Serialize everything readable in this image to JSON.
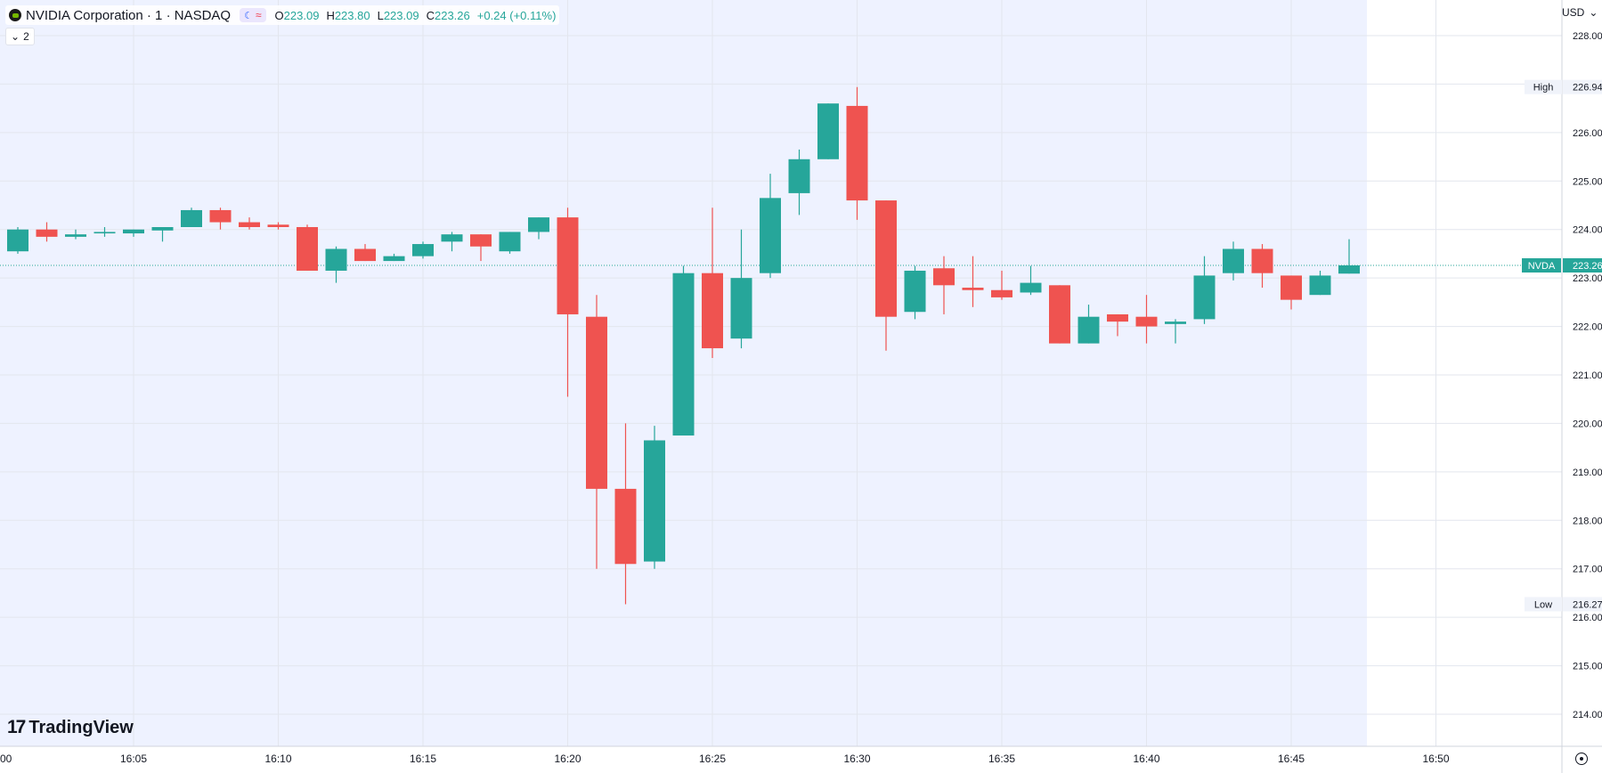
{
  "header": {
    "symbol_title": "NVIDIA Corporation · 1 · NASDAQ",
    "ohlc": {
      "o_label": "O",
      "o_value": "223.09",
      "h_label": "H",
      "h_value": "223.80",
      "l_label": "L",
      "l_value": "223.09",
      "c_label": "C",
      "c_value": "223.26",
      "change": "+0.24 (+0.11%)"
    },
    "indicators_toggle": "2",
    "currency": "USD"
  },
  "brand": {
    "name": "TradingView"
  },
  "colors": {
    "up": "#26a69a",
    "down": "#ef5350",
    "session_bg": "#eef2ff",
    "grid": "#e0e3eb"
  },
  "chart_data": {
    "type": "candlestick",
    "title": "NVIDIA Corporation · 1 · NASDAQ",
    "interval_minutes": 1,
    "ylim": [
      213.3,
      228.35
    ],
    "y_ticks": [
      "214.00",
      "215.00",
      "216.00",
      "217.00",
      "218.00",
      "219.00",
      "220.00",
      "221.00",
      "222.00",
      "223.00",
      "224.00",
      "225.00",
      "226.00",
      "227.00",
      "228.00"
    ],
    "x_ticks": [
      {
        "time": "16:00",
        "label": "00"
      },
      {
        "time": "16:05",
        "label": "16:05"
      },
      {
        "time": "16:10",
        "label": "16:10"
      },
      {
        "time": "16:15",
        "label": "16:15"
      },
      {
        "time": "16:20",
        "label": "16:20"
      },
      {
        "time": "16:25",
        "label": "16:25"
      },
      {
        "time": "16:30",
        "label": "16:30"
      },
      {
        "time": "16:35",
        "label": "16:35"
      },
      {
        "time": "16:40",
        "label": "16:40"
      },
      {
        "time": "16:45",
        "label": "16:45"
      },
      {
        "time": "16:50",
        "label": "16:50"
      }
    ],
    "session_end": "16:47",
    "candles": [
      {
        "t": "16:00",
        "o": 223.35,
        "h": 223.65,
        "l": 223.25,
        "c": 223.55
      },
      {
        "t": "16:01",
        "o": 223.55,
        "h": 224.05,
        "l": 223.5,
        "c": 224.0
      },
      {
        "t": "16:02",
        "o": 224.0,
        "h": 224.15,
        "l": 223.75,
        "c": 223.85
      },
      {
        "t": "16:03",
        "o": 223.85,
        "h": 224.0,
        "l": 223.8,
        "c": 223.9
      },
      {
        "t": "16:04",
        "o": 223.92,
        "h": 224.05,
        "l": 223.85,
        "c": 223.95
      },
      {
        "t": "16:05",
        "o": 223.92,
        "h": 224.0,
        "l": 223.85,
        "c": 224.0
      },
      {
        "t": "16:06",
        "o": 223.98,
        "h": 224.05,
        "l": 223.75,
        "c": 224.05
      },
      {
        "t": "16:07",
        "o": 224.05,
        "h": 224.45,
        "l": 224.05,
        "c": 224.4
      },
      {
        "t": "16:08",
        "o": 224.4,
        "h": 224.45,
        "l": 224.0,
        "c": 224.15
      },
      {
        "t": "16:09",
        "o": 224.15,
        "h": 224.25,
        "l": 224.0,
        "c": 224.05
      },
      {
        "t": "16:10",
        "o": 224.1,
        "h": 224.15,
        "l": 224.0,
        "c": 224.05
      },
      {
        "t": "16:11",
        "o": 224.05,
        "h": 224.1,
        "l": 223.15,
        "c": 223.15
      },
      {
        "t": "16:12",
        "o": 223.15,
        "h": 223.65,
        "l": 222.9,
        "c": 223.6
      },
      {
        "t": "16:13",
        "o": 223.6,
        "h": 223.7,
        "l": 223.35,
        "c": 223.35
      },
      {
        "t": "16:14",
        "o": 223.35,
        "h": 223.5,
        "l": 223.35,
        "c": 223.45
      },
      {
        "t": "16:15",
        "o": 223.45,
        "h": 223.75,
        "l": 223.4,
        "c": 223.7
      },
      {
        "t": "16:16",
        "o": 223.75,
        "h": 223.95,
        "l": 223.55,
        "c": 223.9
      },
      {
        "t": "16:17",
        "o": 223.9,
        "h": 223.9,
        "l": 223.35,
        "c": 223.65
      },
      {
        "t": "16:18",
        "o": 223.55,
        "h": 223.95,
        "l": 223.5,
        "c": 223.95
      },
      {
        "t": "16:19",
        "o": 223.95,
        "h": 224.25,
        "l": 223.8,
        "c": 224.25
      },
      {
        "t": "16:20",
        "o": 224.25,
        "h": 224.45,
        "l": 220.55,
        "c": 222.25
      },
      {
        "t": "16:21",
        "o": 222.2,
        "h": 222.65,
        "l": 217.0,
        "c": 218.65
      },
      {
        "t": "16:22",
        "o": 218.65,
        "h": 220.0,
        "l": 216.27,
        "c": 217.1
      },
      {
        "t": "16:23",
        "o": 217.15,
        "h": 219.95,
        "l": 217.0,
        "c": 219.65
      },
      {
        "t": "16:24",
        "o": 219.75,
        "h": 223.25,
        "l": 219.75,
        "c": 223.1
      },
      {
        "t": "16:25",
        "o": 223.1,
        "h": 224.45,
        "l": 221.35,
        "c": 221.55
      },
      {
        "t": "16:26",
        "o": 221.75,
        "h": 224.0,
        "l": 221.55,
        "c": 223.0
      },
      {
        "t": "16:27",
        "o": 223.1,
        "h": 225.15,
        "l": 223.0,
        "c": 224.65
      },
      {
        "t": "16:28",
        "o": 224.75,
        "h": 225.65,
        "l": 224.3,
        "c": 225.45
      },
      {
        "t": "16:29",
        "o": 225.45,
        "h": 226.6,
        "l": 225.45,
        "c": 226.6
      },
      {
        "t": "16:30",
        "o": 226.55,
        "h": 226.94,
        "l": 224.2,
        "c": 224.6
      },
      {
        "t": "16:31",
        "o": 224.6,
        "h": 224.6,
        "l": 221.5,
        "c": 222.2
      },
      {
        "t": "16:32",
        "o": 222.3,
        "h": 223.25,
        "l": 222.15,
        "c": 223.15
      },
      {
        "t": "16:33",
        "o": 223.2,
        "h": 223.45,
        "l": 222.25,
        "c": 222.85
      },
      {
        "t": "16:34",
        "o": 222.8,
        "h": 223.45,
        "l": 222.4,
        "c": 222.75
      },
      {
        "t": "16:35",
        "o": 222.75,
        "h": 223.15,
        "l": 222.55,
        "c": 222.6
      },
      {
        "t": "16:36",
        "o": 222.7,
        "h": 223.25,
        "l": 222.65,
        "c": 222.9
      },
      {
        "t": "16:37",
        "o": 222.85,
        "h": 222.85,
        "l": 221.65,
        "c": 221.65
      },
      {
        "t": "16:38",
        "o": 221.65,
        "h": 222.45,
        "l": 221.65,
        "c": 222.2
      },
      {
        "t": "16:39",
        "o": 222.25,
        "h": 222.25,
        "l": 221.8,
        "c": 222.1
      },
      {
        "t": "16:40",
        "o": 222.2,
        "h": 222.65,
        "l": 221.65,
        "c": 222.0
      },
      {
        "t": "16:41",
        "o": 222.05,
        "h": 222.15,
        "l": 221.65,
        "c": 222.1
      },
      {
        "t": "16:42",
        "o": 222.15,
        "h": 223.45,
        "l": 222.05,
        "c": 223.05
      },
      {
        "t": "16:43",
        "o": 223.1,
        "h": 223.75,
        "l": 222.95,
        "c": 223.6
      },
      {
        "t": "16:44",
        "o": 223.6,
        "h": 223.7,
        "l": 222.8,
        "c": 223.1
      },
      {
        "t": "16:45",
        "o": 223.05,
        "h": 223.05,
        "l": 222.35,
        "c": 222.55
      },
      {
        "t": "16:46",
        "o": 222.65,
        "h": 223.15,
        "l": 222.65,
        "c": 223.05
      },
      {
        "t": "16:47",
        "o": 223.09,
        "h": 223.8,
        "l": 223.09,
        "c": 223.26
      }
    ],
    "markers": [
      {
        "label": "High",
        "value": "226.94",
        "price": 226.94
      },
      {
        "label": "Low",
        "value": "216.27",
        "price": 216.27
      }
    ],
    "last_price": {
      "label": "NVDA",
      "value": "223.26",
      "price": 223.26
    }
  }
}
